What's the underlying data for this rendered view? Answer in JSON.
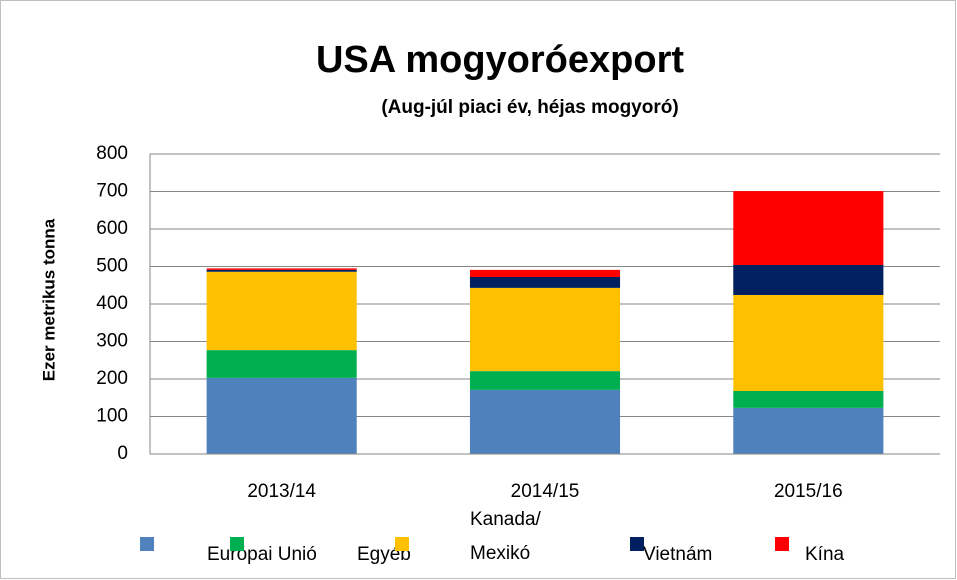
{
  "chart_data": {
    "type": "bar",
    "stacked": true,
    "title": "USA mogyoróexport",
    "subtitle": "(Aug-júl piaci év, héjas mogyoró)",
    "y_label": "Ezer metrikus tonna",
    "categories": [
      "2013/14",
      "2014/15",
      "2015/16"
    ],
    "series": [
      {
        "name": "Európai Unió",
        "color": "#4f81bd",
        "values": [
          203,
          171,
          123
        ]
      },
      {
        "name": "Egyéb",
        "color": "#00b050",
        "values": [
          74,
          50,
          45
        ]
      },
      {
        "name": "Kanada/\nMexikó",
        "color": "#ffc000",
        "values": [
          209,
          222,
          256
        ]
      },
      {
        "name": "Vietnám",
        "color": "#002060",
        "values": [
          5,
          29,
          80
        ]
      },
      {
        "name": "Kína",
        "color": "#ff0000",
        "values": [
          4,
          19,
          197
        ]
      }
    ],
    "ylim": [
      0,
      800
    ],
    "yticks": [
      0,
      100,
      200,
      300,
      400,
      500,
      600,
      700,
      800
    ],
    "grid": true
  }
}
